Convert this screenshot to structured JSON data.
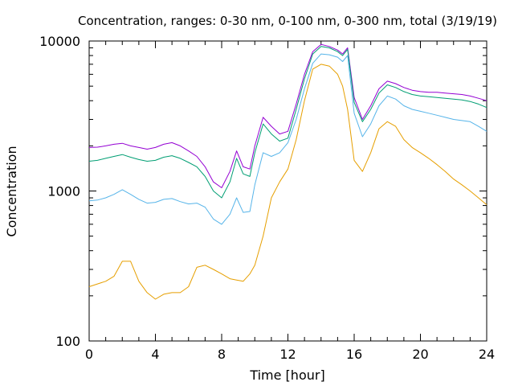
{
  "chart_data": {
    "type": "line",
    "title": "Concentration, ranges: 0-30 nm, 0-100 nm, 0-300 nm, total (3/19/19)",
    "xlabel": "Time [hour]",
    "ylabel": "Concentration",
    "xlim": [
      0,
      24
    ],
    "ylim": [
      100,
      10000
    ],
    "yscale": "log",
    "grid": false,
    "legend": "none",
    "x_ticks": [
      0,
      4,
      8,
      12,
      16,
      20,
      24
    ],
    "y_ticks": [
      100,
      1000,
      10000
    ],
    "x": [
      0,
      0.5,
      1,
      1.5,
      2,
      2.5,
      3,
      3.5,
      4,
      4.5,
      5,
      5.5,
      6,
      6.5,
      7,
      7.5,
      8,
      8.5,
      8.9,
      9.3,
      9.7,
      10,
      10.5,
      11,
      11.5,
      12,
      12.5,
      13,
      13.5,
      14,
      14.5,
      15,
      15.3,
      15.6,
      16,
      16.5,
      17,
      17.5,
      18,
      18.5,
      19,
      19.5,
      20,
      20.5,
      21,
      21.5,
      22,
      22.5,
      23,
      23.5,
      24
    ],
    "series": [
      {
        "color": "#9400d3",
        "values": [
          1950,
          1960,
          2000,
          2050,
          2080,
          2000,
          1950,
          1900,
          1950,
          2050,
          2100,
          2000,
          1850,
          1700,
          1450,
          1150,
          1050,
          1350,
          1850,
          1450,
          1400,
          2000,
          3100,
          2700,
          2400,
          2500,
          3800,
          6000,
          8500,
          9500,
          9200,
          8700,
          8200,
          9000,
          4200,
          3000,
          3700,
          4800,
          5400,
          5200,
          4900,
          4700,
          4600,
          4550,
          4550,
          4500,
          4450,
          4400,
          4300,
          4150,
          4000
        ]
      },
      {
        "color": "#009e73",
        "values": [
          1580,
          1600,
          1650,
          1700,
          1750,
          1680,
          1620,
          1580,
          1600,
          1680,
          1720,
          1650,
          1550,
          1450,
          1250,
          1000,
          900,
          1150,
          1650,
          1300,
          1250,
          1800,
          2800,
          2400,
          2150,
          2250,
          3500,
          5600,
          8200,
          9200,
          9000,
          8500,
          8000,
          8800,
          3900,
          2900,
          3500,
          4500,
          5100,
          4900,
          4600,
          4400,
          4300,
          4250,
          4200,
          4150,
          4100,
          4050,
          3950,
          3800,
          3600
        ]
      },
      {
        "color": "#56b4e9",
        "values": [
          860,
          870,
          900,
          950,
          1020,
          950,
          880,
          830,
          840,
          880,
          890,
          850,
          820,
          830,
          780,
          650,
          600,
          700,
          900,
          720,
          730,
          1100,
          1800,
          1700,
          1800,
          2100,
          3000,
          4800,
          7100,
          8200,
          8100,
          7800,
          7300,
          8000,
          3300,
          2300,
          2800,
          3700,
          4300,
          4100,
          3700,
          3500,
          3400,
          3300,
          3200,
          3100,
          3000,
          2950,
          2900,
          2700,
          2500
        ]
      },
      {
        "color": "#e69f00",
        "values": [
          230,
          240,
          250,
          270,
          340,
          340,
          250,
          210,
          190,
          205,
          210,
          210,
          230,
          310,
          320,
          300,
          280,
          260,
          255,
          250,
          280,
          320,
          500,
          900,
          1150,
          1400,
          2200,
          4000,
          6500,
          7000,
          6800,
          6000,
          5000,
          3500,
          1600,
          1350,
          1800,
          2600,
          2900,
          2700,
          2200,
          1950,
          1800,
          1650,
          1500,
          1350,
          1200,
          1100,
          1000,
          900,
          810
        ]
      }
    ]
  }
}
